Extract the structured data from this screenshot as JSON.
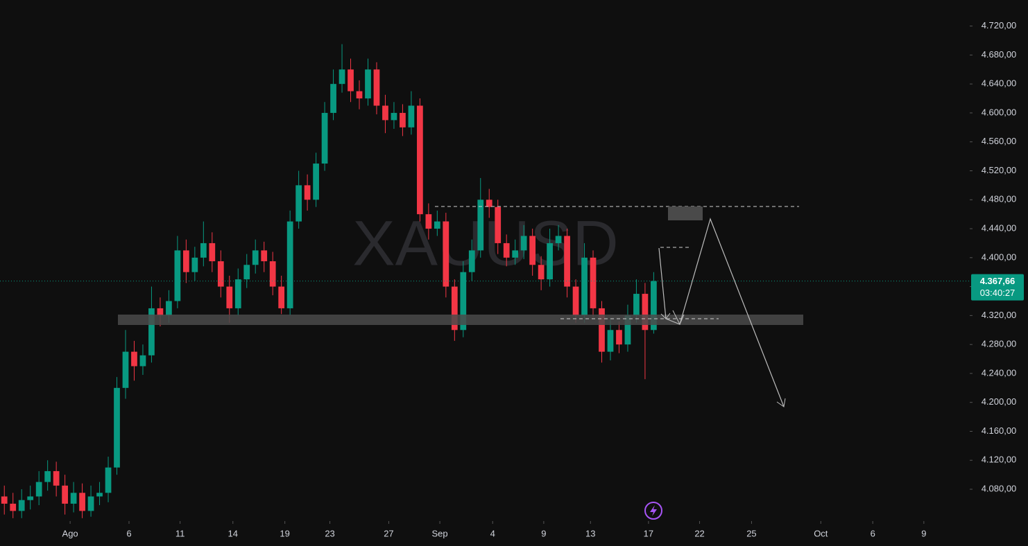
{
  "chart_data": {
    "type": "candlestick",
    "symbol": "XAUUSD",
    "last_price_label": "4.367,66",
    "countdown": "03:40:27",
    "up_color": "#089981",
    "down_color": "#f23645",
    "xlim": [
      0,
      112
    ],
    "ylim": [
      4036,
      4756
    ],
    "xticks": [
      {
        "value": 8.1,
        "label": "Ago"
      },
      {
        "value": 14.9,
        "label": "6"
      },
      {
        "value": 20.8,
        "label": "11"
      },
      {
        "value": 26.9,
        "label": "14"
      },
      {
        "value": 32.9,
        "label": "19"
      },
      {
        "value": 38.1,
        "label": "23"
      },
      {
        "value": 44.9,
        "label": "27"
      },
      {
        "value": 50.8,
        "label": "Sep"
      },
      {
        "value": 56.9,
        "label": "4"
      },
      {
        "value": 62.8,
        "label": "9"
      },
      {
        "value": 68.2,
        "label": "13"
      },
      {
        "value": 74.9,
        "label": "17"
      },
      {
        "value": 80.8,
        "label": "22"
      },
      {
        "value": 86.8,
        "label": "25"
      },
      {
        "value": 94.8,
        "label": "Oct"
      },
      {
        "value": 100.8,
        "label": "6"
      },
      {
        "value": 106.7,
        "label": "9"
      }
    ],
    "yticks": [
      {
        "value": 4080,
        "label": "4.080,00"
      },
      {
        "value": 4120,
        "label": "4.120,00"
      },
      {
        "value": 4160,
        "label": "4.160,00"
      },
      {
        "value": 4200,
        "label": "4.200,00"
      },
      {
        "value": 4240,
        "label": "4.240,00"
      },
      {
        "value": 4280,
        "label": "4.280,00"
      },
      {
        "value": 4320,
        "label": "4.320,00"
      },
      {
        "value": 4360,
        "label": "4.360,00"
      },
      {
        "value": 4400,
        "label": "4.400,00"
      },
      {
        "value": 4440,
        "label": "4.440,00"
      },
      {
        "value": 4480,
        "label": "4.480,00"
      },
      {
        "value": 4520,
        "label": "4.520,00"
      },
      {
        "value": 4560,
        "label": "4.560,00"
      },
      {
        "value": 4600,
        "label": "4.600,00"
      },
      {
        "value": 4640,
        "label": "4.640,00"
      },
      {
        "value": 4680,
        "label": "4.680,00"
      },
      {
        "value": 4720,
        "label": "4.720,00"
      }
    ],
    "open": [
      4070,
      4060,
      4050,
      4065,
      4070,
      4090,
      4105,
      4085,
      4060,
      4075,
      4050,
      4070,
      4075,
      4110,
      4220,
      4270,
      4250,
      4265,
      4330,
      4320,
      4340,
      4410,
      4380,
      4400,
      4420,
      4395,
      4360,
      4330,
      4370,
      4390,
      4410,
      4395,
      4360,
      4330,
      4450,
      4500,
      4480,
      4530,
      4600,
      4640,
      4660,
      4630,
      4620,
      4660,
      4610,
      4590,
      4600,
      4580,
      4610,
      4460,
      4440,
      4450,
      4360,
      4300,
      4380,
      4410,
      4480,
      4470,
      4420,
      4400,
      4410,
      4430,
      4390,
      4370,
      4420,
      4430,
      4360,
      4320,
      4400,
      4330,
      4270,
      4300,
      4280,
      4320,
      4350,
      4300
    ],
    "high": [
      4085,
      4075,
      4080,
      4085,
      4105,
      4120,
      4118,
      4100,
      4090,
      4088,
      4085,
      4090,
      4125,
      4235,
      4300,
      4285,
      4280,
      4360,
      4345,
      4355,
      4430,
      4425,
      4415,
      4450,
      4435,
      4410,
      4375,
      4385,
      4405,
      4425,
      4422,
      4408,
      4375,
      4465,
      4520,
      4515,
      4545,
      4615,
      4660,
      4695,
      4675,
      4645,
      4675,
      4670,
      4625,
      4615,
      4612,
      4630,
      4620,
      4475,
      4465,
      4462,
      4370,
      4395,
      4425,
      4510,
      4495,
      4480,
      4432,
      4425,
      4445,
      4440,
      4402,
      4440,
      4445,
      4440,
      4370,
      4420,
      4410,
      4340,
      4315,
      4312,
      4335,
      4370,
      4365,
      4380
    ],
    "low": [
      4045,
      4040,
      4040,
      4052,
      4058,
      4078,
      4070,
      4045,
      4048,
      4040,
      4042,
      4058,
      4062,
      4100,
      4205,
      4230,
      4238,
      4255,
      4305,
      4310,
      4330,
      4365,
      4368,
      4388,
      4380,
      4345,
      4310,
      4320,
      4358,
      4378,
      4380,
      4348,
      4322,
      4320,
      4440,
      4465,
      4470,
      4520,
      4590,
      4628,
      4615,
      4605,
      4610,
      4598,
      4572,
      4578,
      4568,
      4570,
      4450,
      4425,
      4430,
      4345,
      4285,
      4290,
      4368,
      4400,
      4455,
      4405,
      4388,
      4390,
      4398,
      4375,
      4355,
      4360,
      4410,
      4345,
      4310,
      4310,
      4318,
      4255,
      4258,
      4268,
      4270,
      4310,
      4232,
      4295
    ],
    "close": [
      4060,
      4050,
      4065,
      4070,
      4090,
      4105,
      4085,
      4060,
      4075,
      4050,
      4070,
      4075,
      4110,
      4220,
      4270,
      4250,
      4265,
      4330,
      4320,
      4340,
      4410,
      4380,
      4400,
      4420,
      4395,
      4360,
      4330,
      4370,
      4390,
      4410,
      4395,
      4360,
      4330,
      4450,
      4500,
      4480,
      4530,
      4600,
      4640,
      4660,
      4630,
      4620,
      4660,
      4610,
      4590,
      4600,
      4580,
      4610,
      4460,
      4440,
      4450,
      4360,
      4300,
      4380,
      4410,
      4480,
      4470,
      4420,
      4400,
      4410,
      4430,
      4390,
      4370,
      4420,
      4430,
      4360,
      4320,
      4400,
      4330,
      4270,
      4300,
      4280,
      4320,
      4350,
      4300,
      4367.66
    ]
  }
}
